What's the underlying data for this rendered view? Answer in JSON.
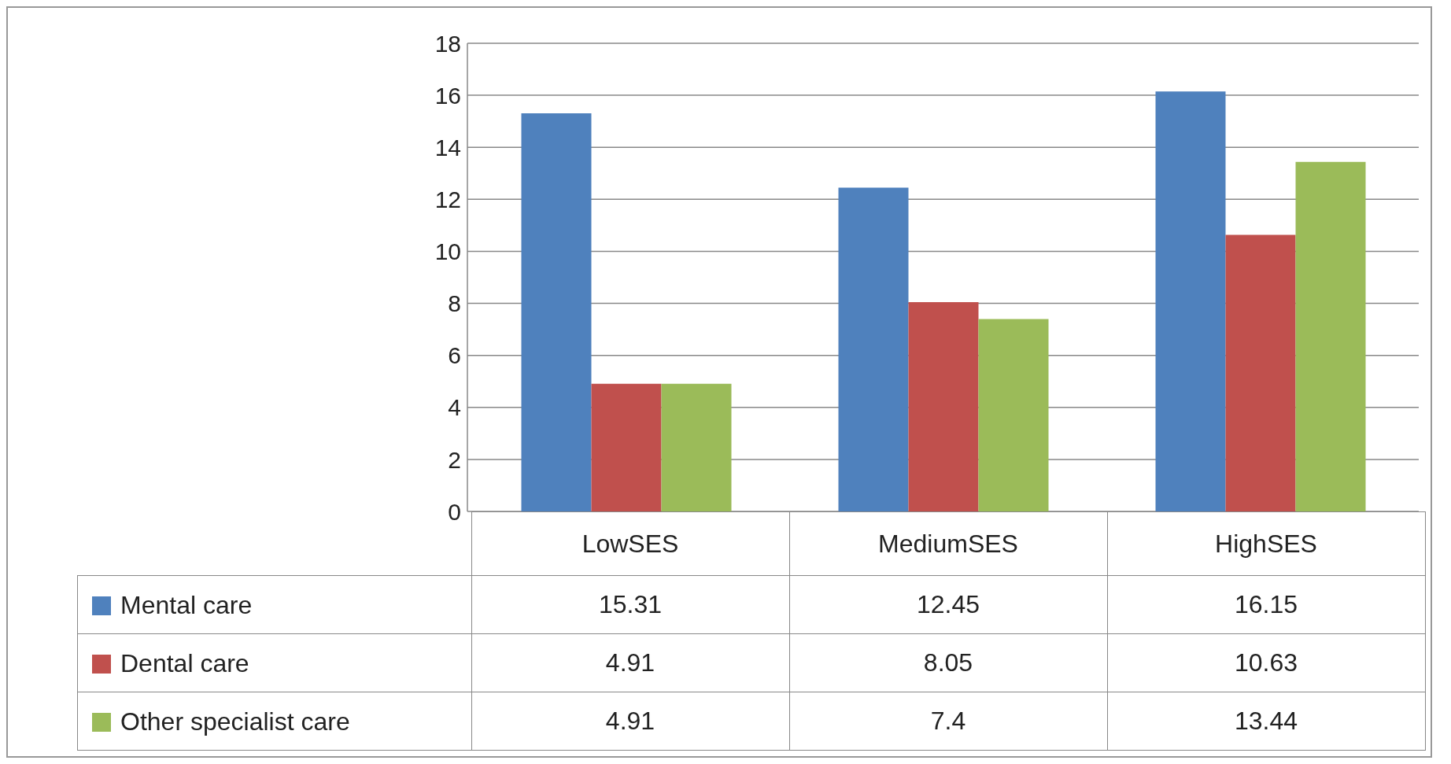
{
  "chart_data": {
    "type": "bar",
    "categories": [
      "LowSES",
      "MediumSES",
      "HighSES"
    ],
    "series": [
      {
        "name": "Mental care",
        "color": "#4f81bd",
        "values": [
          15.31,
          12.45,
          16.15
        ]
      },
      {
        "name": "Dental care",
        "color": "#c0504d",
        "values": [
          4.91,
          8.05,
          10.63
        ]
      },
      {
        "name": "Other specialist care",
        "color": "#9bbb59",
        "values": [
          4.91,
          7.4,
          13.44
        ]
      }
    ],
    "ylim": [
      0,
      18
    ],
    "yticks": [
      0,
      2,
      4,
      6,
      8,
      10,
      12,
      14,
      16,
      18
    ],
    "grid": "y",
    "legend": "bottom",
    "data_labels": true
  }
}
